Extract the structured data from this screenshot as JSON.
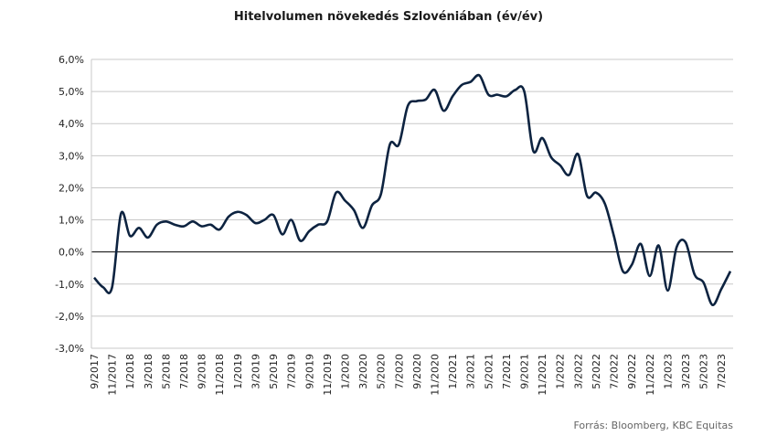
{
  "chart_data": {
    "type": "line",
    "title": "Hitelvolumen növekedés Szlovéniában (év/év)",
    "source": "Forrás: Bloomberg, KBC Equitas",
    "categories": [
      "9/2017",
      null,
      "11/2017",
      null,
      "1/2018",
      null,
      "3/2018",
      null,
      "5/2018",
      null,
      "7/2018",
      null,
      "9/2018",
      null,
      "11/2018",
      null,
      "1/2019",
      null,
      "3/2019",
      null,
      "5/2019",
      null,
      "7/2019",
      null,
      "9/2019",
      null,
      "11/2019",
      null,
      "1/2020",
      null,
      "3/2020",
      null,
      "5/2020",
      null,
      "7/2020",
      null,
      "9/2020",
      null,
      "11/2020",
      null,
      "1/2021",
      null,
      "3/2021",
      null,
      "5/2021",
      null,
      "7/2021",
      null,
      "9/2021",
      null,
      "11/2021",
      null,
      "1/2022",
      null,
      "3/2022",
      null,
      "5/2022",
      null,
      "7/2022",
      null,
      "9/2022",
      null,
      "11/2022",
      null,
      "1/2023",
      null,
      "3/2023",
      null,
      "5/2023",
      null,
      "7/2023",
      null
    ],
    "series": [
      {
        "name": "Hitelvolumen",
        "color": "#0d2340",
        "values": [
          -0.8,
          -1.1,
          -1.1,
          1.2,
          0.5,
          0.75,
          0.45,
          0.85,
          0.95,
          0.85,
          0.8,
          0.95,
          0.8,
          0.85,
          0.7,
          1.1,
          1.25,
          1.15,
          0.9,
          1.0,
          1.15,
          0.55,
          1.0,
          0.35,
          0.65,
          0.85,
          0.95,
          1.85,
          1.6,
          1.3,
          0.75,
          1.45,
          1.8,
          3.35,
          3.35,
          4.55,
          4.7,
          4.75,
          5.05,
          4.4,
          4.85,
          5.2,
          5.3,
          5.5,
          4.9,
          4.9,
          4.85,
          5.05,
          5.0,
          3.15,
          3.55,
          2.95,
          2.7,
          2.4,
          3.05,
          1.75,
          1.85,
          1.5,
          0.5,
          -0.6,
          -0.4,
          0.25,
          -0.75,
          0.2,
          -1.2,
          0.15,
          0.3,
          -0.7,
          -0.95,
          -1.65,
          -1.15,
          -0.6
        ]
      }
    ],
    "ylim": [
      -3,
      6
    ],
    "yticks": [
      {
        "value": -3,
        "label": "-3,0%"
      },
      {
        "value": -2,
        "label": "-2,0%"
      },
      {
        "value": -1,
        "label": "-1,0%"
      },
      {
        "value": 0,
        "label": "0,0%"
      },
      {
        "value": 1,
        "label": "1,0%"
      },
      {
        "value": 2,
        "label": "2,0%"
      },
      {
        "value": 3,
        "label": "3,0%"
      },
      {
        "value": 4,
        "label": "4,0%"
      },
      {
        "value": 5,
        "label": "5,0%"
      },
      {
        "value": 6,
        "label": "6,0%"
      }
    ],
    "grid": true
  }
}
